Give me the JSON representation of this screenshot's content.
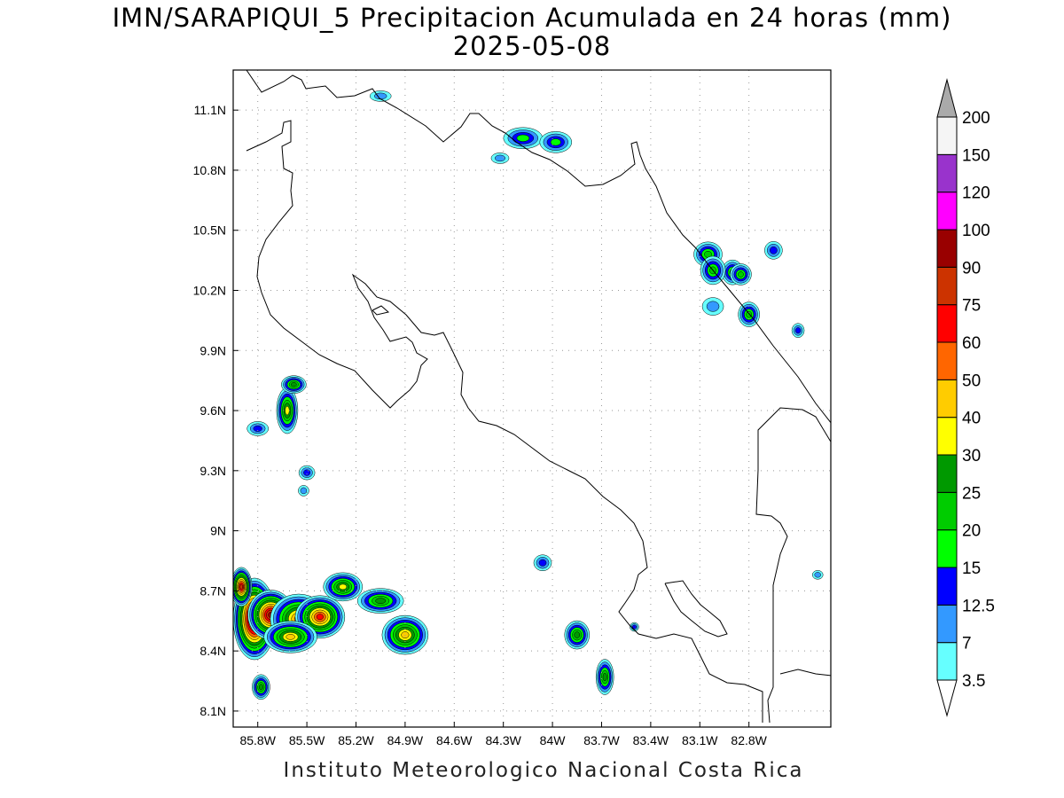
{
  "title": {
    "line1": "IMN/SARAPIQUI_5 Precipitacion Acumulada en 24 horas (mm)",
    "line2": "2025-05-08"
  },
  "footer": "Instituto Meteorologico Nacional Costa Rica",
  "map": {
    "lat_labels": [
      "11.1N",
      "10.8N",
      "10.5N",
      "10.2N",
      "9.9N",
      "9.6N",
      "9.3N",
      "9N",
      "8.7N",
      "8.4N",
      "8.1N"
    ],
    "lon_labels": [
      "85.8W",
      "85.5W",
      "85.2W",
      "84.9W",
      "84.6W",
      "84.3W",
      "84W",
      "83.7W",
      "83.4W",
      "83.1W",
      "82.8W"
    ],
    "lon_range": [
      -85.95,
      -82.3
    ],
    "lat_range": [
      8.02,
      11.3
    ],
    "grid": true
  },
  "colorbar": {
    "unit": "mm",
    "levels": [
      "3.5",
      "7",
      "12.5",
      "15",
      "20",
      "25",
      "30",
      "40",
      "50",
      "60",
      "75",
      "90",
      "100",
      "120",
      "150",
      "200"
    ],
    "colors": [
      "#66ffff",
      "#3399ff",
      "#0000ff",
      "#00ff00",
      "#00cc00",
      "#009900",
      "#ffff00",
      "#ffcc00",
      "#ff6600",
      "#ff0000",
      "#cc3300",
      "#990000",
      "#ff00ff",
      "#9933cc",
      "#f5f5f5",
      "#aaaaaa"
    ]
  },
  "precip_cells": [
    {
      "lon": -85.82,
      "lat": 8.56,
      "rx": 24,
      "ry": 46,
      "peak": 120
    },
    {
      "lon": -85.72,
      "lat": 8.58,
      "rx": 26,
      "ry": 28,
      "peak": 90
    },
    {
      "lon": -85.9,
      "lat": 8.72,
      "rx": 12,
      "ry": 22,
      "peak": 75
    },
    {
      "lon": -85.55,
      "lat": 8.56,
      "rx": 32,
      "ry": 28,
      "peak": 50
    },
    {
      "lon": -85.42,
      "lat": 8.57,
      "rx": 28,
      "ry": 24,
      "peak": 60
    },
    {
      "lon": -85.6,
      "lat": 8.47,
      "rx": 30,
      "ry": 18,
      "peak": 40
    },
    {
      "lon": -85.28,
      "lat": 8.72,
      "rx": 22,
      "ry": 16,
      "peak": 30
    },
    {
      "lon": -85.05,
      "lat": 8.65,
      "rx": 26,
      "ry": 14,
      "peak": 25
    },
    {
      "lon": -84.9,
      "lat": 8.48,
      "rx": 26,
      "ry": 22,
      "peak": 40
    },
    {
      "lon": -85.78,
      "lat": 8.22,
      "rx": 10,
      "ry": 14,
      "peak": 25
    },
    {
      "lon": -85.62,
      "lat": 9.6,
      "rx": 12,
      "ry": 26,
      "peak": 30
    },
    {
      "lon": -85.58,
      "lat": 9.73,
      "rx": 14,
      "ry": 10,
      "peak": 25
    },
    {
      "lon": -85.8,
      "lat": 9.51,
      "rx": 12,
      "ry": 8,
      "peak": 12.5
    },
    {
      "lon": -85.5,
      "lat": 9.29,
      "rx": 9,
      "ry": 8,
      "peak": 12.5
    },
    {
      "lon": -85.52,
      "lat": 9.2,
      "rx": 6,
      "ry": 6,
      "peak": 7
    },
    {
      "lon": -84.18,
      "lat": 10.96,
      "rx": 22,
      "ry": 12,
      "peak": 15
    },
    {
      "lon": -83.98,
      "lat": 10.94,
      "rx": 18,
      "ry": 12,
      "peak": 15
    },
    {
      "lon": -84.32,
      "lat": 10.86,
      "rx": 10,
      "ry": 6,
      "peak": 7
    },
    {
      "lon": -85.05,
      "lat": 11.17,
      "rx": 12,
      "ry": 6,
      "peak": 7
    },
    {
      "lon": -83.05,
      "lat": 10.38,
      "rx": 16,
      "ry": 14,
      "peak": 20
    },
    {
      "lon": -82.9,
      "lat": 10.29,
      "rx": 12,
      "ry": 14,
      "peak": 20
    },
    {
      "lon": -83.02,
      "lat": 10.3,
      "rx": 14,
      "ry": 16,
      "peak": 20
    },
    {
      "lon": -82.85,
      "lat": 10.28,
      "rx": 12,
      "ry": 12,
      "peak": 20
    },
    {
      "lon": -82.8,
      "lat": 10.08,
      "rx": 12,
      "ry": 14,
      "peak": 20
    },
    {
      "lon": -82.65,
      "lat": 10.4,
      "rx": 10,
      "ry": 10,
      "peak": 12.5
    },
    {
      "lon": -82.5,
      "lat": 10.0,
      "rx": 7,
      "ry": 8,
      "peak": 12.5
    },
    {
      "lon": -83.02,
      "lat": 10.12,
      "rx": 12,
      "ry": 10,
      "peak": 7
    },
    {
      "lon": -84.06,
      "lat": 8.84,
      "rx": 10,
      "ry": 9,
      "peak": 12.5
    },
    {
      "lon": -83.85,
      "lat": 8.48,
      "rx": 14,
      "ry": 16,
      "peak": 25
    },
    {
      "lon": -83.68,
      "lat": 8.27,
      "rx": 10,
      "ry": 20,
      "peak": 25
    },
    {
      "lon": -83.5,
      "lat": 8.52,
      "rx": 5,
      "ry": 5,
      "peak": 12.5
    },
    {
      "lon": -82.38,
      "lat": 8.78,
      "rx": 6,
      "ry": 5,
      "peak": 7
    }
  ]
}
